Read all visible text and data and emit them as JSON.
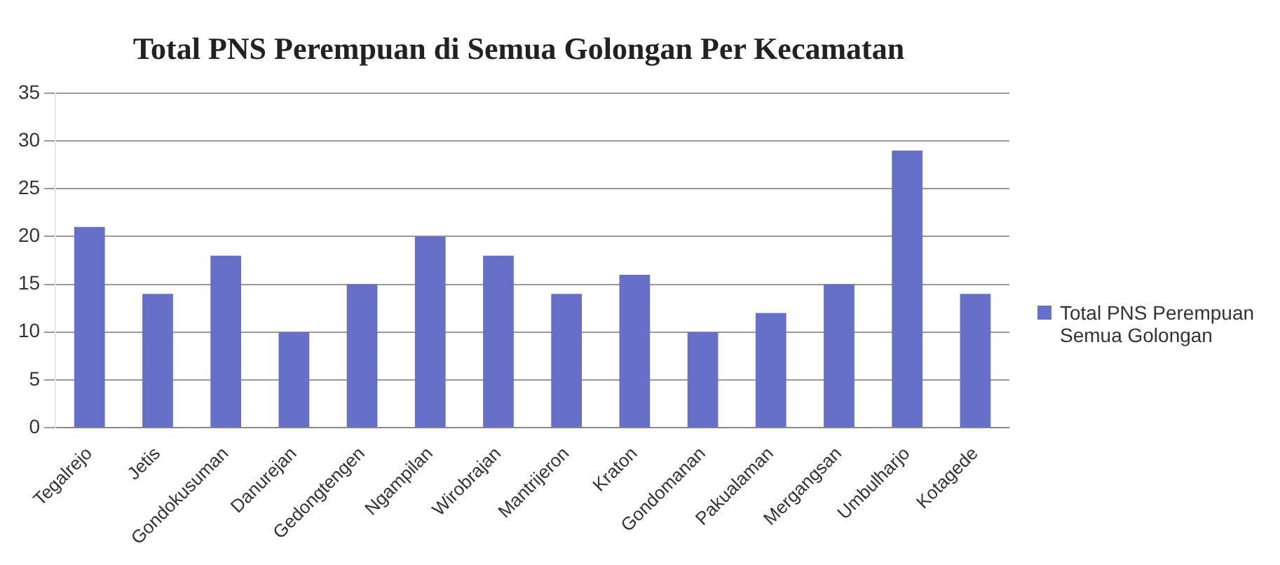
{
  "chart_data": {
    "type": "bar",
    "title": "Total PNS Perempuan di Semua Golongan Per Kecamatan",
    "categories": [
      "Tegalrejo",
      "Jetis",
      "Gondokusuman",
      "Danurejan",
      "Gedongtengen",
      "Ngampilan",
      "Wirobrajan",
      "Mantrijeron",
      "Kraton",
      "Gondomanan",
      "Pakualaman",
      "Mergangsan",
      "Umbulharjo",
      "Kotagede"
    ],
    "series": [
      {
        "name": "Total PNS Perempuan Semua Golongan",
        "color": "#6670c8",
        "values": [
          21,
          14,
          18,
          10,
          15,
          20,
          18,
          14,
          16,
          10,
          12,
          15,
          29,
          14
        ]
      }
    ],
    "ylim": [
      0,
      35
    ],
    "yticks": [
      0,
      5,
      10,
      15,
      20,
      25,
      30,
      35
    ],
    "grid": "y",
    "legend": "right"
  }
}
